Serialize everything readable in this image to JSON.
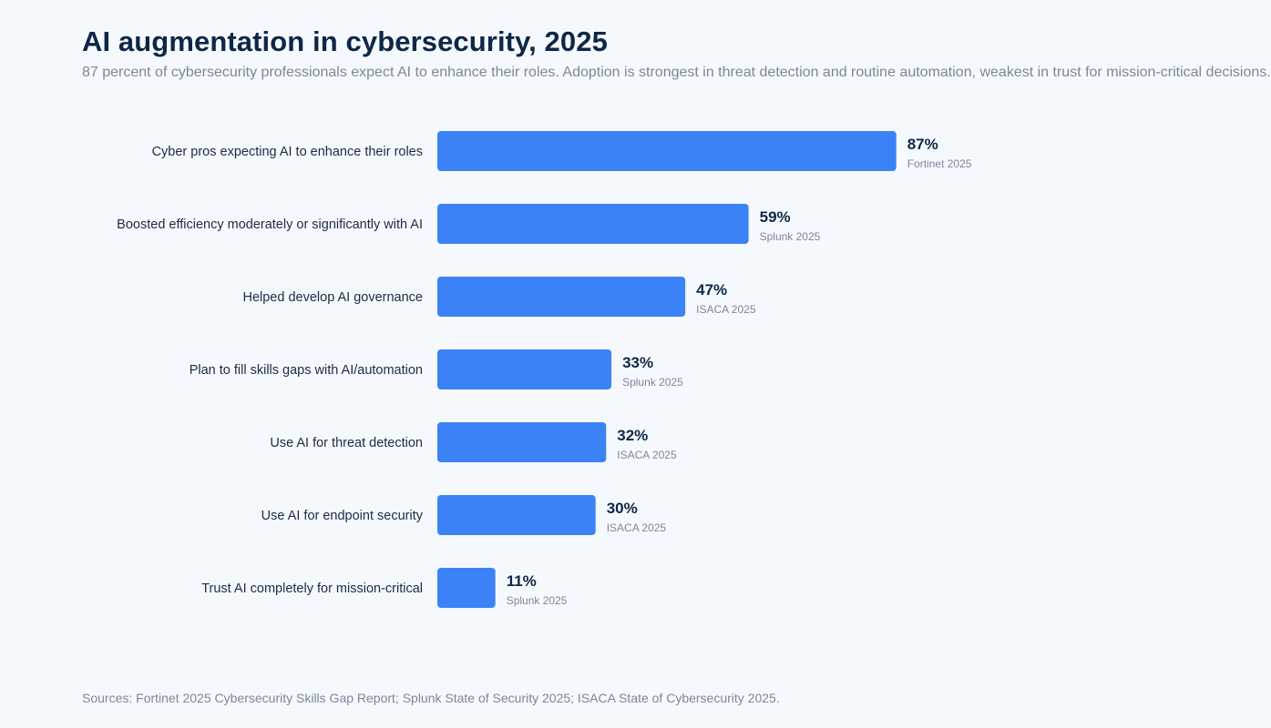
{
  "header": {
    "title": "AI augmentation in cybersecurity, 2025",
    "subtitle": "87 percent of cybersecurity professionals expect AI to enhance their roles. Adoption is strongest in threat detection and routine automation, weakest in trust for mission-critical decisions."
  },
  "footer": {
    "source": "Sources: Fortinet 2025 Cybersecurity Skills Gap Report; Splunk State of Security 2025; ISACA State of Cybersecurity 2025."
  },
  "colors": {
    "bar": "#3b82f6",
    "background": "#f5f9fe",
    "title": "#0f2747",
    "muted": "#7b879a"
  },
  "chart_data": {
    "type": "bar",
    "orientation": "horizontal",
    "title": "AI augmentation in cybersecurity, 2025",
    "xlabel": "",
    "ylabel": "",
    "xlim": [
      0,
      100
    ],
    "grid": false,
    "unit": "%",
    "categories": [
      "Cyber pros expecting AI to enhance their roles",
      "Boosted efficiency moderately or significantly with AI",
      "Helped develop AI governance",
      "Plan to fill skills gaps with AI/automation",
      "Use AI for threat detection",
      "Use AI for endpoint security",
      "Trust AI completely for mission-critical"
    ],
    "values": [
      87,
      59,
      47,
      33,
      32,
      30,
      11
    ],
    "value_labels": [
      "87%",
      "59%",
      "47%",
      "33%",
      "32%",
      "30%",
      "11%"
    ],
    "sources": [
      "Fortinet 2025",
      "Splunk 2025",
      "ISACA 2025",
      "Splunk 2025",
      "ISACA 2025",
      "ISACA 2025",
      "Splunk 2025"
    ]
  }
}
